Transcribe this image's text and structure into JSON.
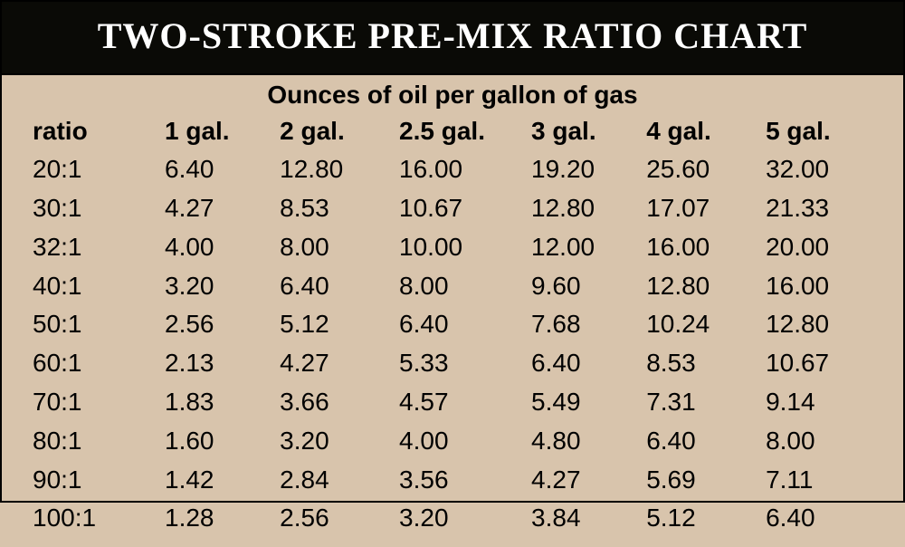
{
  "title": "TWO-STROKE PRE-MIX RATIO CHART",
  "subtitle": "Ounces of oil per gallon of gas",
  "table": {
    "type": "table",
    "background_color": "#d8c4ac",
    "title_bg": "#0a0a06",
    "title_color": "#ffffff",
    "text_color": "#000000",
    "border_color": "#000000",
    "title_fontsize": 40,
    "header_fontsize": 28,
    "cell_fontsize": 28,
    "column_widths_pct": [
      15.5,
      13.5,
      14,
      15.5,
      13.5,
      14,
      14
    ],
    "columns": [
      "ratio",
      "1 gal.",
      "2 gal.",
      "2.5 gal.",
      "3 gal.",
      "4 gal.",
      "5 gal."
    ],
    "rows": [
      [
        "20:1",
        "6.40",
        "12.80",
        "16.00",
        "19.20",
        "25.60",
        "32.00"
      ],
      [
        "30:1",
        "4.27",
        "8.53",
        "10.67",
        "12.80",
        "17.07",
        "21.33"
      ],
      [
        "32:1",
        "4.00",
        "8.00",
        "10.00",
        "12.00",
        "16.00",
        "20.00"
      ],
      [
        "40:1",
        "3.20",
        "6.40",
        "8.00",
        "9.60",
        "12.80",
        "16.00"
      ],
      [
        "50:1",
        "2.56",
        "5.12",
        "6.40",
        "7.68",
        "10.24",
        "12.80"
      ],
      [
        "60:1",
        "2.13",
        "4.27",
        "5.33",
        "6.40",
        "8.53",
        "10.67"
      ],
      [
        "70:1",
        "1.83",
        "3.66",
        "4.57",
        "5.49",
        "7.31",
        "9.14"
      ],
      [
        "80:1",
        "1.60",
        "3.20",
        "4.00",
        "4.80",
        "6.40",
        "8.00"
      ],
      [
        "90:1",
        "1.42",
        "2.84",
        "3.56",
        "4.27",
        "5.69",
        "7.11"
      ],
      [
        "100:1",
        "1.28",
        "2.56",
        "3.20",
        "3.84",
        "5.12",
        "6.40"
      ]
    ]
  }
}
